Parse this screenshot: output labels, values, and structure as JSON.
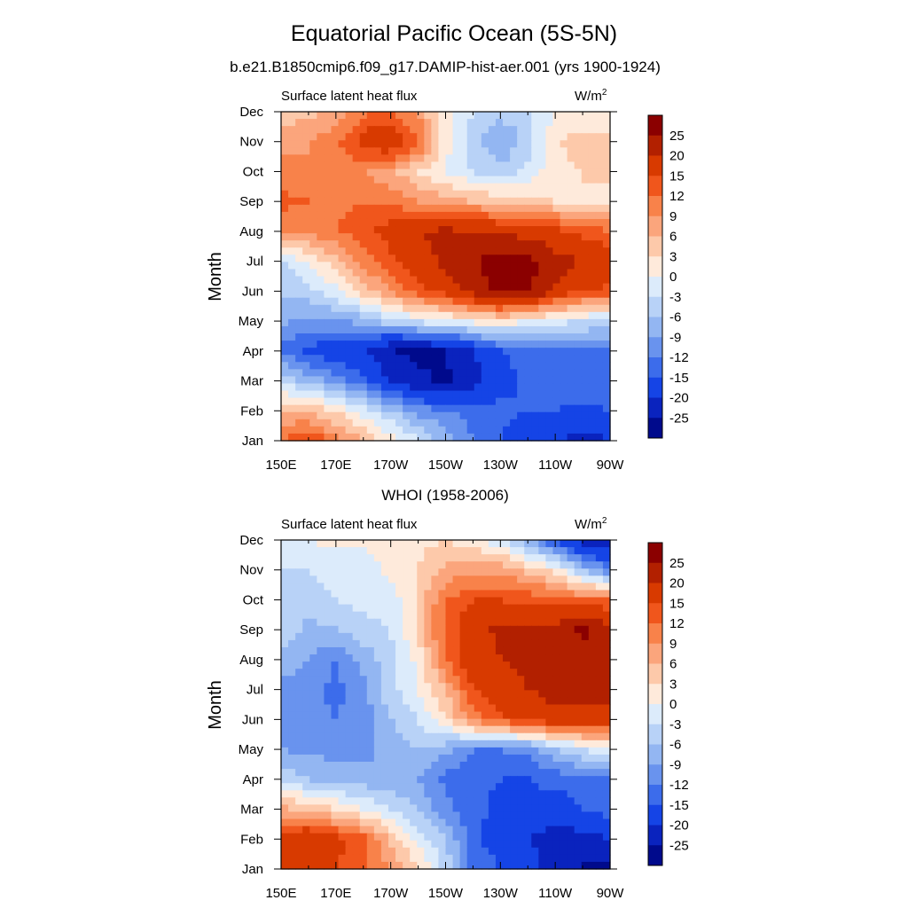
{
  "figure": {
    "title": "Equatorial Pacific Ocean (5S-5N)",
    "subtitle": "b.e21.B1850cmip6.f09_g17.DAMIP-hist-aer.001 (yrs 1900-1924)"
  },
  "panels": [
    {
      "label": "Surface latent heat flux",
      "units_base": "W/m",
      "units_exp": "2",
      "ylabel": "Month",
      "top_title": ""
    },
    {
      "label": "Surface latent heat flux",
      "units_base": "W/m",
      "units_exp": "2",
      "ylabel": "Month",
      "top_title": "WHOI (1958-2006)"
    }
  ],
  "axes": {
    "x_ticks": [
      "150E",
      "170E",
      "170W",
      "150W",
      "130W",
      "110W",
      "90W"
    ],
    "y_ticks": [
      "Jan",
      "Feb",
      "Mar",
      "Apr",
      "May",
      "Jun",
      "Jul",
      "Aug",
      "Sep",
      "Oct",
      "Nov",
      "Dec"
    ]
  },
  "colorbar": {
    "labels": [
      "25",
      "20",
      "15",
      "12",
      "9",
      "6",
      "3",
      "0",
      "-3",
      "-6",
      "-9",
      "-12",
      "-15",
      "-20",
      "-25"
    ],
    "colors": [
      "#8b0000",
      "#b22000",
      "#d83a00",
      "#f0561c",
      "#f8824a",
      "#fba57c",
      "#fdc9aa",
      "#feeadb",
      "#dcebfb",
      "#b8d2f7",
      "#93b6f2",
      "#6993ee",
      "#3c6ceb",
      "#1544e6",
      "#0a23be",
      "#000a8c"
    ]
  },
  "chart_data": [
    {
      "type": "heatmap",
      "title": "Surface latent heat flux",
      "units": "W/m2",
      "ylabel": "Month",
      "x": [
        "150E",
        "160E",
        "170E",
        "180",
        "170W",
        "160W",
        "150W",
        "140W",
        "130W",
        "120W",
        "110W",
        "100W",
        "90W"
      ],
      "y": [
        "Jan",
        "Feb",
        "Mar",
        "Apr",
        "May",
        "Jun",
        "Jul",
        "Aug",
        "Sep",
        "Oct",
        "Nov",
        "Dec"
      ],
      "values": [
        [
          12,
          16,
          10,
          6,
          2,
          -3,
          -7,
          -12,
          -15,
          -18,
          -20,
          -22,
          -20
        ],
        [
          6,
          5,
          3,
          -2,
          -6,
          -10,
          -12,
          -13,
          -14,
          -15,
          -15,
          -16,
          -15
        ],
        [
          -4,
          -7,
          -10,
          -14,
          -20,
          -24,
          -26,
          -22,
          -17,
          -14,
          -13,
          -13,
          -12
        ],
        [
          -13,
          -16,
          -18,
          -20,
          -25,
          -26,
          -25,
          -20,
          -15,
          -13,
          -13,
          -12,
          -12
        ],
        [
          -8,
          -10,
          -9,
          -8,
          -4,
          -2,
          -1,
          1,
          2,
          0,
          -2,
          -3,
          -5
        ],
        [
          -6,
          -4,
          -1,
          5,
          9,
          14,
          17,
          22,
          26,
          26,
          19,
          15,
          14
        ],
        [
          -3,
          0,
          5,
          10,
          14,
          18,
          21,
          25,
          27,
          27,
          22,
          20,
          18
        ],
        [
          9,
          10,
          12,
          14,
          17,
          20,
          21,
          20,
          19,
          18,
          16,
          14,
          12
        ],
        [
          13,
          12,
          11,
          12,
          11,
          9,
          7,
          6,
          5,
          4,
          3,
          3,
          2
        ],
        [
          10,
          9,
          10,
          9,
          7,
          3,
          0,
          -3,
          -5,
          -2,
          2,
          3,
          4
        ],
        [
          8,
          9,
          11,
          17,
          19,
          13,
          1,
          -5,
          -9,
          -5,
          3,
          4,
          5
        ],
        [
          4,
          5,
          7,
          11,
          12,
          8,
          1,
          -3,
          -5,
          -4,
          0,
          1,
          0
        ]
      ],
      "xlim": [
        "150E",
        "90W"
      ],
      "ylim": [
        "Jan",
        "Dec"
      ]
    },
    {
      "type": "heatmap",
      "title": "Surface latent heat flux",
      "top_title": "WHOI (1958-2006)",
      "units": "W/m2",
      "ylabel": "Month",
      "x": [
        "150E",
        "160E",
        "170E",
        "180",
        "170W",
        "160W",
        "150W",
        "140W",
        "130W",
        "120W",
        "110W",
        "100W",
        "90W"
      ],
      "y": [
        "Jan",
        "Feb",
        "Mar",
        "Apr",
        "May",
        "Jun",
        "Jul",
        "Aug",
        "Sep",
        "Oct",
        "Nov",
        "Dec"
      ],
      "values": [
        [
          16,
          16,
          15,
          13,
          9,
          3,
          -4,
          -13,
          -15,
          -18,
          -22,
          -26,
          -26
        ],
        [
          17,
          20,
          16,
          13,
          5,
          -1,
          -6,
          -14,
          -17,
          -20,
          -22,
          -22,
          -20
        ],
        [
          7,
          5,
          3,
          0,
          -3,
          -6,
          -11,
          -14,
          -16,
          -16,
          -17,
          -15,
          -13
        ],
        [
          -4,
          -6,
          -7,
          -8,
          -8,
          -9,
          -13,
          -14,
          -15,
          -15,
          -14,
          -13,
          -12
        ],
        [
          -9,
          -10,
          -10,
          -10,
          -8,
          -6,
          -8,
          -12,
          -12,
          -11,
          -6,
          -3,
          0
        ],
        [
          -11,
          -11,
          -12,
          -11,
          -6,
          -3,
          3,
          10,
          14,
          16,
          18,
          18,
          17
        ],
        [
          -10,
          -11,
          -13,
          -10,
          -4,
          0,
          6,
          15,
          18,
          20,
          22,
          23,
          22
        ],
        [
          -7,
          -9,
          -12,
          -8,
          -4,
          1,
          12,
          18,
          20,
          21,
          22,
          23,
          22
        ],
        [
          -4,
          -7,
          -6,
          -4,
          -3,
          4,
          13,
          18,
          21,
          21,
          22,
          26,
          22
        ],
        [
          -3,
          -4,
          -3,
          -2,
          -2,
          4,
          12,
          15,
          15,
          14,
          13,
          12,
          12
        ],
        [
          -3,
          -3,
          -2,
          -2,
          1,
          3,
          7,
          8,
          8,
          5,
          2,
          -6,
          -12
        ],
        [
          -2,
          0,
          1,
          1,
          2,
          2,
          3,
          1,
          -2,
          -8,
          -16,
          -22,
          -24
        ]
      ],
      "xlim": [
        "150E",
        "90W"
      ],
      "ylim": [
        "Jan",
        "Dec"
      ]
    }
  ]
}
